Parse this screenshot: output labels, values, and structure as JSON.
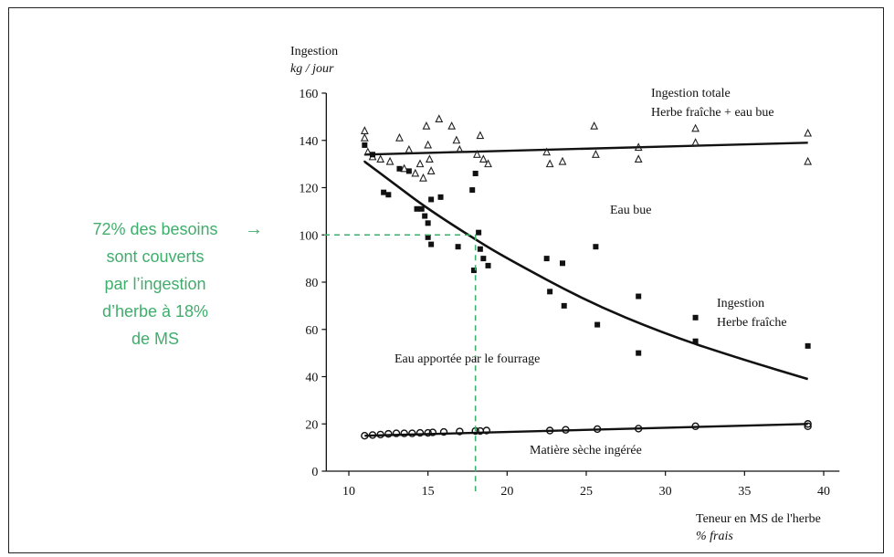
{
  "chart_data": {
    "type": "scatter",
    "y_title_line1": "Ingestion",
    "y_title_line2": "kg / jour",
    "x_title_line1": "Teneur en MS de l'herbe",
    "x_title_line2": "% frais",
    "xlim": [
      8,
      41
    ],
    "ylim": [
      0,
      160
    ],
    "x_ticks": [
      10,
      15,
      20,
      25,
      30,
      35,
      40
    ],
    "y_ticks": [
      0,
      20,
      40,
      60,
      80,
      100,
      120,
      140,
      160
    ],
    "series": [
      {
        "name": "Ingestion totale Herbe fraîche + eau bue",
        "marker": "triangle",
        "points": [
          [
            11,
            144
          ],
          [
            11,
            141
          ],
          [
            11.2,
            135
          ],
          [
            11.5,
            133
          ],
          [
            12,
            132
          ],
          [
            12.6,
            131
          ],
          [
            13.2,
            141
          ],
          [
            13.5,
            128
          ],
          [
            13.8,
            136
          ],
          [
            14.2,
            126
          ],
          [
            14.5,
            130
          ],
          [
            14.7,
            124
          ],
          [
            14.9,
            146
          ],
          [
            15,
            138
          ],
          [
            15.1,
            132
          ],
          [
            15.2,
            127
          ],
          [
            15.7,
            149
          ],
          [
            16.5,
            146
          ],
          [
            16.8,
            140
          ],
          [
            17,
            136
          ],
          [
            18.1,
            134
          ],
          [
            18.3,
            142
          ],
          [
            18.5,
            132
          ],
          [
            18.8,
            130
          ],
          [
            22.5,
            135
          ],
          [
            22.7,
            130
          ],
          [
            23.5,
            131
          ],
          [
            25.5,
            146
          ],
          [
            25.6,
            134
          ],
          [
            28.3,
            137
          ],
          [
            28.3,
            132
          ],
          [
            31.9,
            145
          ],
          [
            31.9,
            139
          ],
          [
            39,
            143
          ],
          [
            39,
            131
          ]
        ]
      },
      {
        "name": "Ingestion Herbe fraîche",
        "marker": "square",
        "points": [
          [
            11,
            138
          ],
          [
            11.5,
            134
          ],
          [
            12.2,
            118
          ],
          [
            12.5,
            117
          ],
          [
            13.2,
            128
          ],
          [
            13.8,
            127
          ],
          [
            14.3,
            111
          ],
          [
            14.6,
            111
          ],
          [
            14.8,
            108
          ],
          [
            15,
            105
          ],
          [
            15,
            99
          ],
          [
            15.2,
            96
          ],
          [
            15.2,
            115
          ],
          [
            15.8,
            116
          ],
          [
            16.9,
            95
          ],
          [
            17.8,
            119
          ],
          [
            18,
            126
          ],
          [
            18.2,
            101
          ],
          [
            18.3,
            94
          ],
          [
            18.5,
            90
          ],
          [
            17.9,
            85
          ],
          [
            18.8,
            87
          ],
          [
            22.5,
            90
          ],
          [
            22.7,
            76
          ],
          [
            23.5,
            88
          ],
          [
            23.6,
            70
          ],
          [
            25.6,
            95
          ],
          [
            25.7,
            62
          ],
          [
            28.3,
            74
          ],
          [
            28.3,
            50
          ],
          [
            31.9,
            65
          ],
          [
            31.9,
            55
          ],
          [
            39,
            53
          ]
        ]
      },
      {
        "name": "Matière sèche ingérée",
        "marker": "circle",
        "points": [
          [
            11,
            15
          ],
          [
            11.5,
            15.3
          ],
          [
            12,
            15.5
          ],
          [
            12.5,
            15.8
          ],
          [
            13,
            16
          ],
          [
            13.5,
            16
          ],
          [
            14,
            16
          ],
          [
            14.5,
            16.2
          ],
          [
            15,
            16.2
          ],
          [
            15.3,
            16.4
          ],
          [
            16,
            16.6
          ],
          [
            17,
            16.8
          ],
          [
            18,
            17
          ],
          [
            18.3,
            17
          ],
          [
            18.7,
            17.2
          ],
          [
            22.7,
            17.2
          ],
          [
            23.7,
            17.5
          ],
          [
            25.7,
            17.8
          ],
          [
            28.3,
            18
          ],
          [
            31.9,
            19
          ],
          [
            39,
            20
          ],
          [
            39,
            19
          ]
        ]
      }
    ],
    "curves": {
      "total_line": [
        [
          11,
          134
        ],
        [
          39,
          139
        ]
      ],
      "fresh_curve": [
        [
          11,
          131
        ],
        [
          13,
          121
        ],
        [
          15,
          111
        ],
        [
          18,
          98
        ],
        [
          20,
          90
        ],
        [
          25,
          72
        ],
        [
          30,
          58
        ],
        [
          35,
          47
        ],
        [
          39,
          39
        ]
      ],
      "ms_line": [
        [
          11,
          15
        ],
        [
          39,
          20
        ]
      ]
    },
    "annotations": [
      {
        "id": "total",
        "line1": "Ingestion totale",
        "line2": "Herbe fraîche + eau bue"
      },
      {
        "id": "eau",
        "line1": "Eau bue"
      },
      {
        "id": "fresh",
        "line1": "Ingestion",
        "line2": "Herbe fraîche"
      },
      {
        "id": "fourrage",
        "line1": "Eau apportée par le fourrage"
      },
      {
        "id": "ms",
        "line1": "Matière sèche ingérée"
      }
    ],
    "guide": {
      "x": 18,
      "y": 100,
      "color": "#3fae6b"
    }
  },
  "note": {
    "lines": [
      "72% des besoins",
      "sont couverts",
      "par l’ingestion",
      "d’herbe à 18%",
      "de MS"
    ],
    "arrow": "→",
    "color": "#3fae6b"
  }
}
